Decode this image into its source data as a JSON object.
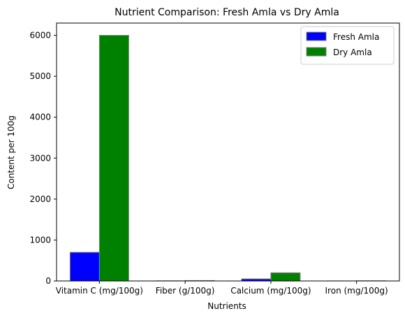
{
  "chart_data": {
    "type": "bar",
    "title": "Nutrient Comparison: Fresh Amla vs Dry Amla",
    "xlabel": "Nutrients",
    "ylabel": "Content per 100g",
    "categories": [
      "Vitamin C (mg/100g)",
      "Fiber (g/100g)",
      "Calcium (mg/100g)",
      "Iron (mg/100g)"
    ],
    "series": [
      {
        "name": "Fresh Amla",
        "color": "#0000ff",
        "values": [
          700,
          3.4,
          50,
          1.2
        ]
      },
      {
        "name": "Dry Amla",
        "color": "#008000",
        "values": [
          6000,
          10,
          200,
          5
        ]
      }
    ],
    "ylim": [
      0,
      6300
    ],
    "yticks": [
      0,
      1000,
      2000,
      3000,
      4000,
      5000,
      6000
    ],
    "grid": false,
    "legend_position": "top-right",
    "bar_edge_color": "#808080"
  }
}
